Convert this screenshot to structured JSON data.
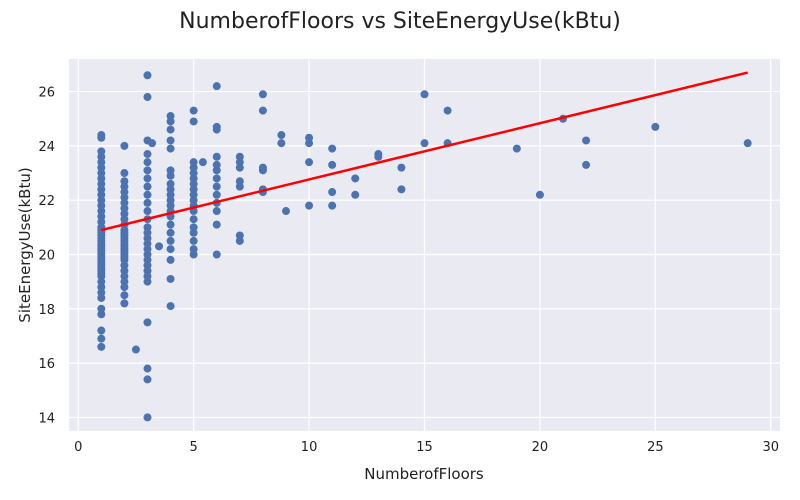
{
  "chart_data": {
    "type": "scatter",
    "title": "NumberofFloors vs SiteEnergyUse(kBtu)",
    "xlabel": "NumberofFloors",
    "ylabel": "SiteEnergyUse(kBtu)",
    "xlim": [
      -0.4,
      30.4
    ],
    "ylim": [
      13.5,
      27.2
    ],
    "xticks": [
      0,
      5,
      10,
      15,
      20,
      25,
      30
    ],
    "yticks": [
      14,
      16,
      18,
      20,
      22,
      24,
      26
    ],
    "grid": true,
    "point_color": "#4c72b0",
    "background_color": "#eaeaf2",
    "series": [
      {
        "points": [
          [
            1,
            24.4
          ],
          [
            1,
            24.3
          ],
          [
            1,
            23.8
          ],
          [
            1,
            23.6
          ],
          [
            1,
            23.4
          ],
          [
            1,
            23.2
          ],
          [
            1,
            23.0
          ],
          [
            1,
            22.8
          ],
          [
            1,
            22.6
          ],
          [
            1,
            22.4
          ],
          [
            1,
            22.2
          ],
          [
            1,
            22.0
          ],
          [
            1,
            21.8
          ],
          [
            1,
            21.6
          ],
          [
            1,
            21.4
          ],
          [
            1,
            21.2
          ],
          [
            1,
            21.0
          ],
          [
            1,
            20.9
          ],
          [
            1,
            20.8
          ],
          [
            1,
            20.7
          ],
          [
            1,
            20.6
          ],
          [
            1,
            20.5
          ],
          [
            1,
            20.4
          ],
          [
            1,
            20.3
          ],
          [
            1,
            20.2
          ],
          [
            1,
            20.1
          ],
          [
            1,
            20.0
          ],
          [
            1,
            19.9
          ],
          [
            1,
            19.8
          ],
          [
            1,
            19.7
          ],
          [
            1,
            19.6
          ],
          [
            1,
            19.5
          ],
          [
            1,
            19.4
          ],
          [
            1,
            19.3
          ],
          [
            1,
            19.2
          ],
          [
            1,
            19.0
          ],
          [
            1,
            18.8
          ],
          [
            1,
            18.6
          ],
          [
            1,
            18.4
          ],
          [
            1,
            18.0
          ],
          [
            1,
            17.8
          ],
          [
            1,
            17.2
          ],
          [
            1,
            16.9
          ],
          [
            1,
            16.6
          ],
          [
            2,
            24.0
          ],
          [
            2,
            23.0
          ],
          [
            2,
            22.7
          ],
          [
            2,
            22.5
          ],
          [
            2,
            22.3
          ],
          [
            2,
            22.1
          ],
          [
            2,
            21.9
          ],
          [
            2,
            21.7
          ],
          [
            2,
            21.5
          ],
          [
            2,
            21.3
          ],
          [
            2,
            21.1
          ],
          [
            2,
            20.9
          ],
          [
            2,
            20.8
          ],
          [
            2,
            20.7
          ],
          [
            2,
            20.6
          ],
          [
            2,
            20.5
          ],
          [
            2,
            20.4
          ],
          [
            2,
            20.3
          ],
          [
            2,
            20.2
          ],
          [
            2,
            20.1
          ],
          [
            2,
            20.0
          ],
          [
            2,
            19.9
          ],
          [
            2,
            19.8
          ],
          [
            2,
            19.6
          ],
          [
            2,
            19.4
          ],
          [
            2,
            19.2
          ],
          [
            2,
            19.0
          ],
          [
            2,
            18.8
          ],
          [
            2,
            18.5
          ],
          [
            2,
            18.2
          ],
          [
            2.5,
            16.5
          ],
          [
            3,
            26.6
          ],
          [
            3,
            25.8
          ],
          [
            3,
            24.2
          ],
          [
            3.2,
            24.1
          ],
          [
            3,
            23.7
          ],
          [
            3,
            23.4
          ],
          [
            3,
            23.1
          ],
          [
            3,
            22.8
          ],
          [
            3,
            22.5
          ],
          [
            3,
            22.2
          ],
          [
            3,
            21.9
          ],
          [
            3,
            21.6
          ],
          [
            3,
            21.3
          ],
          [
            3,
            21.0
          ],
          [
            3,
            20.8
          ],
          [
            3,
            20.6
          ],
          [
            3,
            20.4
          ],
          [
            3,
            20.2
          ],
          [
            3,
            20.0
          ],
          [
            3,
            19.8
          ],
          [
            3,
            19.6
          ],
          [
            3,
            19.4
          ],
          [
            3,
            19.2
          ],
          [
            3,
            19.0
          ],
          [
            3,
            17.5
          ],
          [
            3,
            15.8
          ],
          [
            3,
            15.4
          ],
          [
            3,
            14.0
          ],
          [
            3.5,
            20.3
          ],
          [
            4,
            25.1
          ],
          [
            4,
            24.9
          ],
          [
            4,
            24.6
          ],
          [
            4,
            24.2
          ],
          [
            4,
            23.9
          ],
          [
            4,
            23.1
          ],
          [
            4,
            22.9
          ],
          [
            4,
            22.6
          ],
          [
            4,
            22.4
          ],
          [
            4,
            22.2
          ],
          [
            4,
            22.0
          ],
          [
            4,
            21.8
          ],
          [
            4,
            21.6
          ],
          [
            4,
            21.4
          ],
          [
            4,
            21.1
          ],
          [
            4,
            20.8
          ],
          [
            4,
            20.5
          ],
          [
            4,
            20.2
          ],
          [
            4,
            19.8
          ],
          [
            4,
            19.1
          ],
          [
            4,
            18.1
          ],
          [
            5,
            25.3
          ],
          [
            5,
            24.9
          ],
          [
            5,
            23.4
          ],
          [
            5,
            23.2
          ],
          [
            5,
            23.0
          ],
          [
            5,
            22.8
          ],
          [
            5,
            22.6
          ],
          [
            5,
            22.4
          ],
          [
            5,
            22.2
          ],
          [
            5,
            22.0
          ],
          [
            5,
            21.8
          ],
          [
            5,
            21.6
          ],
          [
            5,
            21.3
          ],
          [
            5,
            21.0
          ],
          [
            5,
            20.8
          ],
          [
            5,
            20.5
          ],
          [
            5,
            20.2
          ],
          [
            5,
            20.0
          ],
          [
            5.4,
            23.4
          ],
          [
            6,
            26.2
          ],
          [
            6,
            24.7
          ],
          [
            6,
            24.6
          ],
          [
            6,
            23.6
          ],
          [
            6,
            23.3
          ],
          [
            6,
            23.1
          ],
          [
            6,
            22.8
          ],
          [
            6,
            22.5
          ],
          [
            6,
            22.2
          ],
          [
            6,
            21.9
          ],
          [
            6,
            21.6
          ],
          [
            6,
            21.1
          ],
          [
            6,
            20.0
          ],
          [
            7,
            23.6
          ],
          [
            7,
            23.4
          ],
          [
            7,
            23.2
          ],
          [
            7,
            22.7
          ],
          [
            7,
            22.5
          ],
          [
            7,
            20.7
          ],
          [
            7,
            20.5
          ],
          [
            8,
            25.9
          ],
          [
            8,
            25.3
          ],
          [
            8,
            23.2
          ],
          [
            8,
            23.1
          ],
          [
            8,
            22.4
          ],
          [
            8,
            22.3
          ],
          [
            8.8,
            24.4
          ],
          [
            8.8,
            24.1
          ],
          [
            9,
            21.6
          ],
          [
            10,
            24.3
          ],
          [
            10,
            24.1
          ],
          [
            10,
            23.4
          ],
          [
            10,
            21.8
          ],
          [
            11,
            23.9
          ],
          [
            11,
            23.3
          ],
          [
            11,
            22.3
          ],
          [
            11,
            21.8
          ],
          [
            12,
            22.8
          ],
          [
            12,
            22.2
          ],
          [
            13,
            23.7
          ],
          [
            13,
            23.6
          ],
          [
            14,
            23.2
          ],
          [
            14,
            22.4
          ],
          [
            15,
            25.9
          ],
          [
            15,
            24.1
          ],
          [
            16,
            25.3
          ],
          [
            16,
            24.1
          ],
          [
            19,
            23.9
          ],
          [
            20,
            22.2
          ],
          [
            21,
            25.0
          ],
          [
            22,
            24.2
          ],
          [
            22,
            23.3
          ],
          [
            25,
            24.7
          ],
          [
            29,
            24.1
          ]
        ]
      }
    ],
    "trend_line": {
      "color": "#ff0000",
      "x": [
        1,
        29
      ],
      "y": [
        20.9,
        26.7
      ]
    }
  }
}
